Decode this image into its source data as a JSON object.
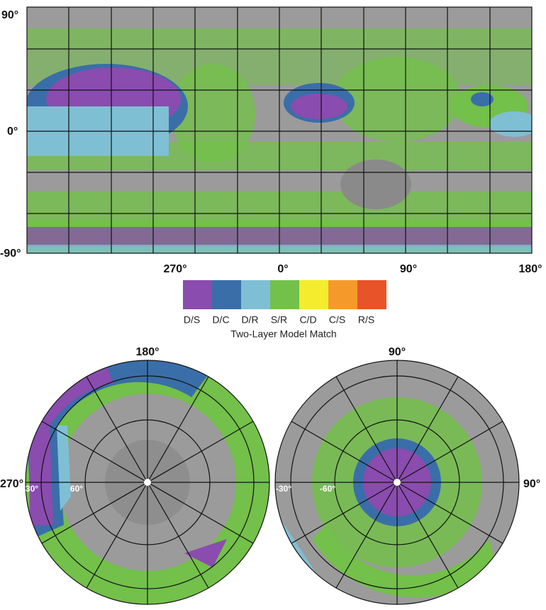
{
  "map": {
    "lat_labels": [
      "90°",
      "0°",
      "-90°"
    ],
    "lon_labels": [
      "270°",
      "0°",
      "90°",
      "180°"
    ]
  },
  "legend": {
    "title": "Two-Layer Model Match",
    "items": [
      {
        "label": "D/S",
        "color": "#8a4cae"
      },
      {
        "label": "D/C",
        "color": "#3a6ea8"
      },
      {
        "label": "D/R",
        "color": "#7fbfd4"
      },
      {
        "label": "S/R",
        "color": "#73c04a"
      },
      {
        "label": "C/D",
        "color": "#f4ec2c"
      },
      {
        "label": "C/S",
        "color": "#f59a2a"
      },
      {
        "label": "R/S",
        "color": "#e8532a"
      }
    ]
  },
  "north_polar": {
    "top_label": "180°",
    "side_label": "270°",
    "ring_labels": [
      "30°",
      "60°"
    ]
  },
  "south_polar": {
    "top_label": "90°",
    "side_label": "90°",
    "ring_labels": [
      "-30°",
      "-60°"
    ]
  }
}
